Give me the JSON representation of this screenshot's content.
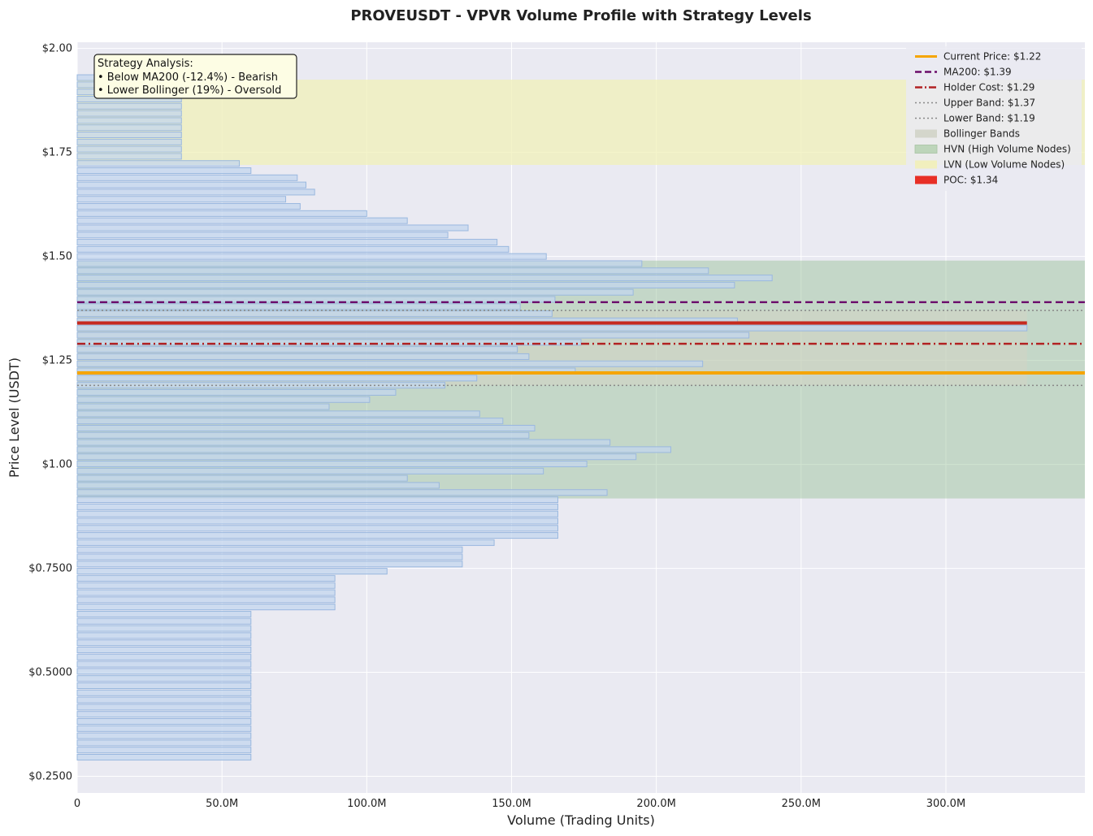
{
  "chart_data": {
    "type": "bar",
    "orientation": "horizontal",
    "title": "PROVEUSDT - VPVR Volume Profile with Strategy Levels",
    "xlabel": "Volume (Trading Units)",
    "ylabel": "Price Level (USDT)",
    "xlim": [
      0,
      348000000
    ],
    "ylim": [
      0.21,
      2.015
    ],
    "xticks": [
      {
        "value": 0,
        "label": "0"
      },
      {
        "value": 50000000,
        "label": "50.0M"
      },
      {
        "value": 100000000,
        "label": "100.0M"
      },
      {
        "value": 150000000,
        "label": "150.0M"
      },
      {
        "value": 200000000,
        "label": "200.0M"
      },
      {
        "value": 250000000,
        "label": "250.0M"
      },
      {
        "value": 300000000,
        "label": "300.0M"
      }
    ],
    "yticks": [
      {
        "value": 2.0,
        "label": "$2.00"
      },
      {
        "value": 1.75,
        "label": "$1.75"
      },
      {
        "value": 1.5,
        "label": "$1.50"
      },
      {
        "value": 1.25,
        "label": "$1.25"
      },
      {
        "value": 1.0,
        "label": "$1.00"
      },
      {
        "value": 0.75,
        "label": "$0.7500"
      },
      {
        "value": 0.5,
        "label": "$0.5000"
      },
      {
        "value": 0.25,
        "label": "$0.2500"
      }
    ],
    "grid": true,
    "legend_position": "top-right",
    "bin_height": 0.0172,
    "price_levels": [
      0.2959,
      0.3131,
      0.3303,
      0.3475,
      0.3647,
      0.3819,
      0.3991,
      0.4163,
      0.4335,
      0.4507,
      0.4679,
      0.4851,
      0.5023,
      0.5195,
      0.5367,
      0.5539,
      0.5711,
      0.5883,
      0.6055,
      0.6227,
      0.6399,
      0.6571,
      0.6743,
      0.6915,
      0.7087,
      0.7259,
      0.7431,
      0.7603,
      0.7775,
      0.7947,
      0.8119,
      0.8291,
      0.8463,
      0.8635,
      0.8807,
      0.8979,
      0.9151,
      0.9323,
      0.9495,
      0.9667,
      0.9839,
      1.0011,
      1.0183,
      1.0355,
      1.0527,
      1.0699,
      1.0871,
      1.1043,
      1.1215,
      1.1387,
      1.1559,
      1.1731,
      1.1903,
      1.2075,
      1.2247,
      1.2419,
      1.2591,
      1.2763,
      1.2935,
      1.3107,
      1.3279,
      1.3451,
      1.3623,
      1.3795,
      1.3967,
      1.4139,
      1.4311,
      1.4483,
      1.4655,
      1.4827,
      1.4999,
      1.5171,
      1.5343,
      1.5515,
      1.5687,
      1.5859,
      1.6031,
      1.6203,
      1.6375,
      1.6547,
      1.6719,
      1.6891,
      1.7063,
      1.7235,
      1.7407,
      1.7579,
      1.7751,
      1.7923,
      1.8095,
      1.8267,
      1.8439,
      1.8611,
      1.8783,
      1.8955,
      1.9127,
      1.9299
    ],
    "volumes": [
      60,
      60,
      60,
      60,
      60,
      60,
      60,
      60,
      60,
      60,
      60,
      60,
      60,
      60,
      60,
      60,
      60,
      60,
      60,
      60,
      60,
      89,
      89,
      89,
      89,
      89,
      107,
      133,
      133,
      133,
      144,
      166,
      166,
      166,
      166,
      166,
      166,
      183,
      125,
      114,
      161,
      176,
      193,
      205,
      184,
      156,
      158,
      147,
      139,
      87,
      101,
      110,
      127,
      138,
      172,
      216,
      156,
      152,
      174,
      232,
      328,
      228,
      164,
      153,
      165,
      192,
      227,
      240,
      218,
      195,
      162,
      149,
      145,
      128,
      135,
      114,
      100,
      77,
      72,
      82,
      79,
      76,
      60,
      56,
      36,
      36,
      36,
      36,
      36,
      36,
      36,
      36,
      36,
      36,
      36,
      36
    ],
    "volume_unit": "M",
    "levels": {
      "current_price": 1.22,
      "ma200": 1.39,
      "holder_cost": 1.29,
      "upper_band": 1.37,
      "lower_band": 1.19,
      "poc": 1.34
    },
    "zones": {
      "bollinger": [
        1.19,
        1.37
      ],
      "hvn": [
        0.918,
        1.49
      ],
      "lvn": [
        1.72,
        1.925
      ]
    },
    "legend": [
      {
        "label": "Current Price: $1.22",
        "kind": "line",
        "color": "#f5a500",
        "dash": "solid"
      },
      {
        "label": "MA200: $1.39",
        "kind": "line",
        "color": "#6a0a6a",
        "dash": "dashed"
      },
      {
        "label": "Holder Cost: $1.29",
        "kind": "line",
        "color": "#b22222",
        "dash": "dashdot"
      },
      {
        "label": "Upper Band: $1.37",
        "kind": "line",
        "color": "#888888",
        "dash": "dotted"
      },
      {
        "label": "Lower Band: $1.19",
        "kind": "line",
        "color": "#888888",
        "dash": "dotted"
      },
      {
        "label": "Bollinger Bands",
        "kind": "patch",
        "color": "#d2d4c8"
      },
      {
        "label": "HVN (High Volume Nodes)",
        "kind": "patch",
        "color": "#9fc79a",
        "hatched": true
      },
      {
        "label": "LVN (Low Volume Nodes)",
        "kind": "patch",
        "color": "#f2efb8"
      },
      {
        "label": "POC: $1.34",
        "kind": "patch",
        "color": "#e81b10"
      }
    ],
    "annotation": {
      "title": "Strategy Analysis:",
      "lines": [
        "• Below MA200 (-12.4%) - Bearish",
        "• Lower Bollinger (19%) - Oversold"
      ]
    },
    "colors": {
      "bar_fill": "#c3d6ee",
      "bar_edge": "#9ab8df",
      "plot_background": "#eaeaf2",
      "current_price": "#f5a500",
      "ma200": "#6a0a6a",
      "holder_cost": "#b22222",
      "band": "#888888",
      "poc": "#c62a1f",
      "hvn_zone": "#8fbc8f",
      "lvn_zone": "#f0f0b8",
      "bollinger_zone": "#d4d4c4"
    }
  }
}
